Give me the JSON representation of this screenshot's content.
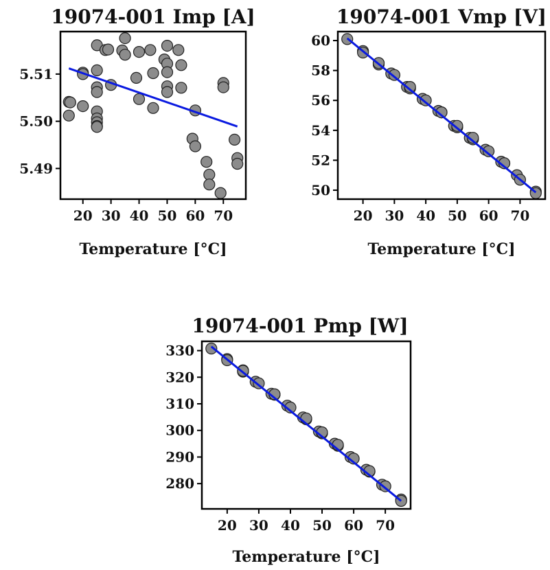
{
  "chart_data": [
    {
      "type": "scatter",
      "title": "19074-001 Imp [A]",
      "xlabel": "Temperature [°C]",
      "ylabel": "",
      "xlim": [
        12,
        78
      ],
      "ylim": [
        5.4835,
        5.519
      ],
      "xticks": [
        20,
        30,
        40,
        50,
        60,
        70
      ],
      "yticks": [
        5.49,
        5.5,
        5.51
      ],
      "ytick_labels": [
        "5.49",
        "5.50",
        "5.51"
      ],
      "grid": false,
      "colors": {
        "points": "#8c8c8c",
        "fit": "#0a1ae0"
      },
      "points": {
        "x": [
          15,
          15,
          15.5,
          20,
          20,
          20,
          25,
          25,
          25,
          25,
          25,
          25,
          25,
          25,
          25,
          28,
          29,
          30,
          34,
          35,
          35,
          39,
          40,
          40,
          44,
          45,
          45,
          49,
          50,
          50,
          50,
          50,
          50,
          54,
          55,
          55,
          59,
          60,
          60,
          64,
          65,
          65,
          69,
          70,
          70,
          74,
          75,
          75
        ],
        "y": [
          5.5041,
          5.5012,
          5.504,
          5.5103,
          5.51,
          5.5032,
          5.5161,
          5.5108,
          5.5072,
          5.5062,
          5.5021,
          5.5006,
          5.4998,
          5.499,
          5.4988,
          5.5151,
          5.5152,
          5.5077,
          5.515,
          5.5176,
          5.5141,
          5.5092,
          5.5147,
          5.5047,
          5.5151,
          5.5102,
          5.5028,
          5.5131,
          5.516,
          5.5122,
          5.5104,
          5.5074,
          5.5062,
          5.5151,
          5.5119,
          5.5071,
          5.4963,
          5.4947,
          5.5023,
          5.4914,
          5.4887,
          5.4866,
          5.4848,
          5.5081,
          5.5072,
          5.4961,
          5.4922,
          5.491
        ]
      },
      "fit": {
        "x": [
          15,
          75
        ],
        "y": [
          5.5112,
          5.4989
        ]
      }
    },
    {
      "type": "scatter",
      "title": "19074-001 Vmp [V]",
      "xlabel": "Temperature [°C]",
      "ylabel": "",
      "xlim": [
        12,
        78
      ],
      "ylim": [
        49.4,
        60.6
      ],
      "xticks": [
        20,
        30,
        40,
        50,
        60,
        70
      ],
      "yticks": [
        50,
        52,
        54,
        56,
        58,
        60
      ],
      "ytick_labels": [
        "50",
        "52",
        "54",
        "56",
        "58",
        "60"
      ],
      "grid": false,
      "colors": {
        "points": "#8c8c8c",
        "fit": "#0a1ae0"
      },
      "points": {
        "x": [
          15,
          20,
          20,
          25,
          25,
          25,
          29,
          30,
          34,
          35,
          35,
          39,
          40,
          44,
          45,
          45,
          49,
          50,
          50,
          54,
          55,
          55,
          59,
          60,
          64,
          65,
          65,
          69,
          70,
          75,
          75
        ],
        "y": [
          60.1,
          59.3,
          59.2,
          58.5,
          58.4,
          58.5,
          57.8,
          57.7,
          56.9,
          56.8,
          56.9,
          56.1,
          56.0,
          55.3,
          55.2,
          55.2,
          54.3,
          54.2,
          54.3,
          53.5,
          53.4,
          53.5,
          52.7,
          52.6,
          51.9,
          51.8,
          51.8,
          51.0,
          50.7,
          49.9,
          49.8
        ]
      },
      "fit": {
        "x": [
          15,
          75
        ],
        "y": [
          60.15,
          49.85
        ]
      }
    },
    {
      "type": "scatter",
      "title": "19074-001 Pmp [W]",
      "xlabel": "Temperature [°C]",
      "ylabel": "",
      "xlim": [
        12,
        78
      ],
      "ylim": [
        270.5,
        333.5
      ],
      "xticks": [
        20,
        30,
        40,
        50,
        60,
        70
      ],
      "yticks": [
        280,
        290,
        300,
        310,
        320,
        330
      ],
      "ytick_labels": [
        "280",
        "290",
        "300",
        "310",
        "320",
        "330"
      ],
      "grid": false,
      "colors": {
        "points": "#8c8c8c",
        "fit": "#0a1ae0"
      },
      "points": {
        "x": [
          15,
          20,
          20,
          25,
          25,
          25,
          29,
          30,
          34,
          35,
          35,
          39,
          40,
          44,
          45,
          45,
          49,
          50,
          50,
          54,
          55,
          55,
          59,
          60,
          64,
          65,
          65,
          69,
          70,
          75,
          75
        ],
        "y": [
          330.8,
          326.8,
          326.4,
          322.6,
          322.1,
          322.4,
          318.3,
          317.7,
          313.8,
          313.4,
          313.6,
          309.3,
          308.6,
          304.9,
          304.2,
          304.5,
          299.6,
          298.9,
          299.3,
          295.0,
          294.2,
          294.6,
          290.0,
          289.4,
          285.2,
          284.5,
          284.7,
          279.6,
          279.0,
          274.0,
          273.5
        ]
      },
      "fit": {
        "x": [
          15,
          75
        ],
        "y": [
          331.5,
          273.5
        ]
      }
    }
  ]
}
